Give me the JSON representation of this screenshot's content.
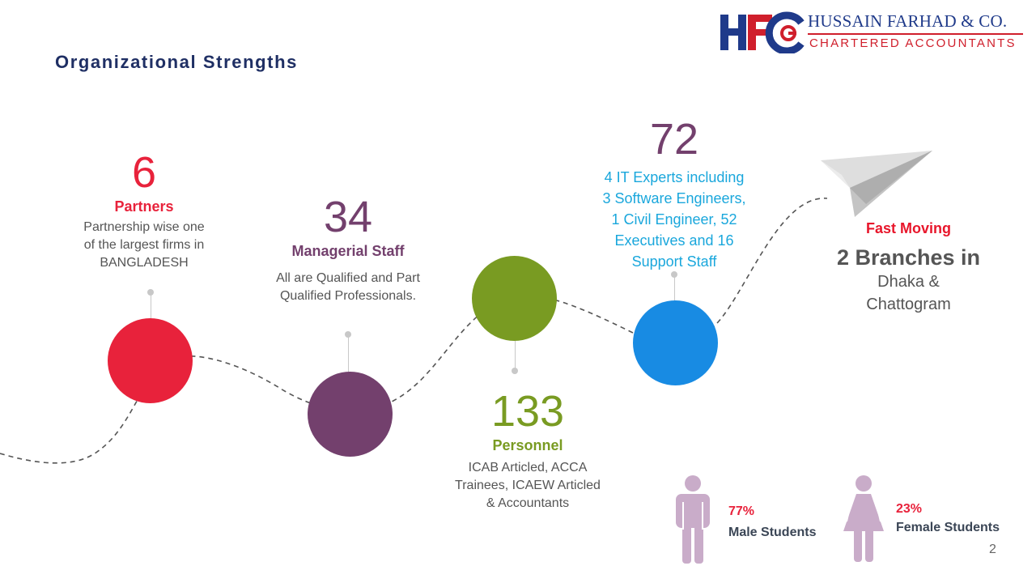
{
  "title": "Organizational Strengths",
  "logo": {
    "name": "HUSSAIN FARHAD & CO.",
    "subtitle": "CHARTERED ACCOUNTANTS",
    "monogram": "HFC"
  },
  "colors": {
    "partners": "#e8223b",
    "managerial": "#73406d",
    "personnel": "#799b22",
    "staff": "#188be3",
    "staff_text": "#1aa7dc",
    "title": "#1f2f64",
    "student_figure": "#c9acc9"
  },
  "milestones": [
    {
      "number": "6",
      "label": "Partners",
      "description_lines": [
        "Partnership wise one",
        "of the largest firms in",
        "BANGLADESH"
      ]
    },
    {
      "number": "34",
      "label": "Managerial Staff",
      "description_lines": [
        "All are Qualified and Part",
        "Qualified Professionals."
      ]
    },
    {
      "number": "133",
      "label": "Personnel",
      "description_lines": [
        "ICAB Articled, ACCA",
        "Trainees, ICAEW Articled",
        "& Accountants"
      ]
    },
    {
      "number": "72",
      "description_lines": [
        "4 IT Experts including",
        "3 Software Engineers,",
        "1 Civil Engineer, 52",
        "Executives and 16",
        "Support Staff"
      ]
    }
  ],
  "fast_moving": {
    "label": "Fast Moving",
    "branches_title": "2 Branches in",
    "branches_lines": [
      "Dhaka &",
      "Chattogram"
    ],
    "icon": "paper-plane-icon"
  },
  "students": {
    "male": {
      "percent": "77%",
      "label": "Male Students",
      "share": 0.77,
      "icon": "male-figure-icon"
    },
    "female": {
      "percent": "23%",
      "label": "Female Students",
      "share": 0.23,
      "icon": "female-figure-icon"
    }
  },
  "page_number": "2"
}
